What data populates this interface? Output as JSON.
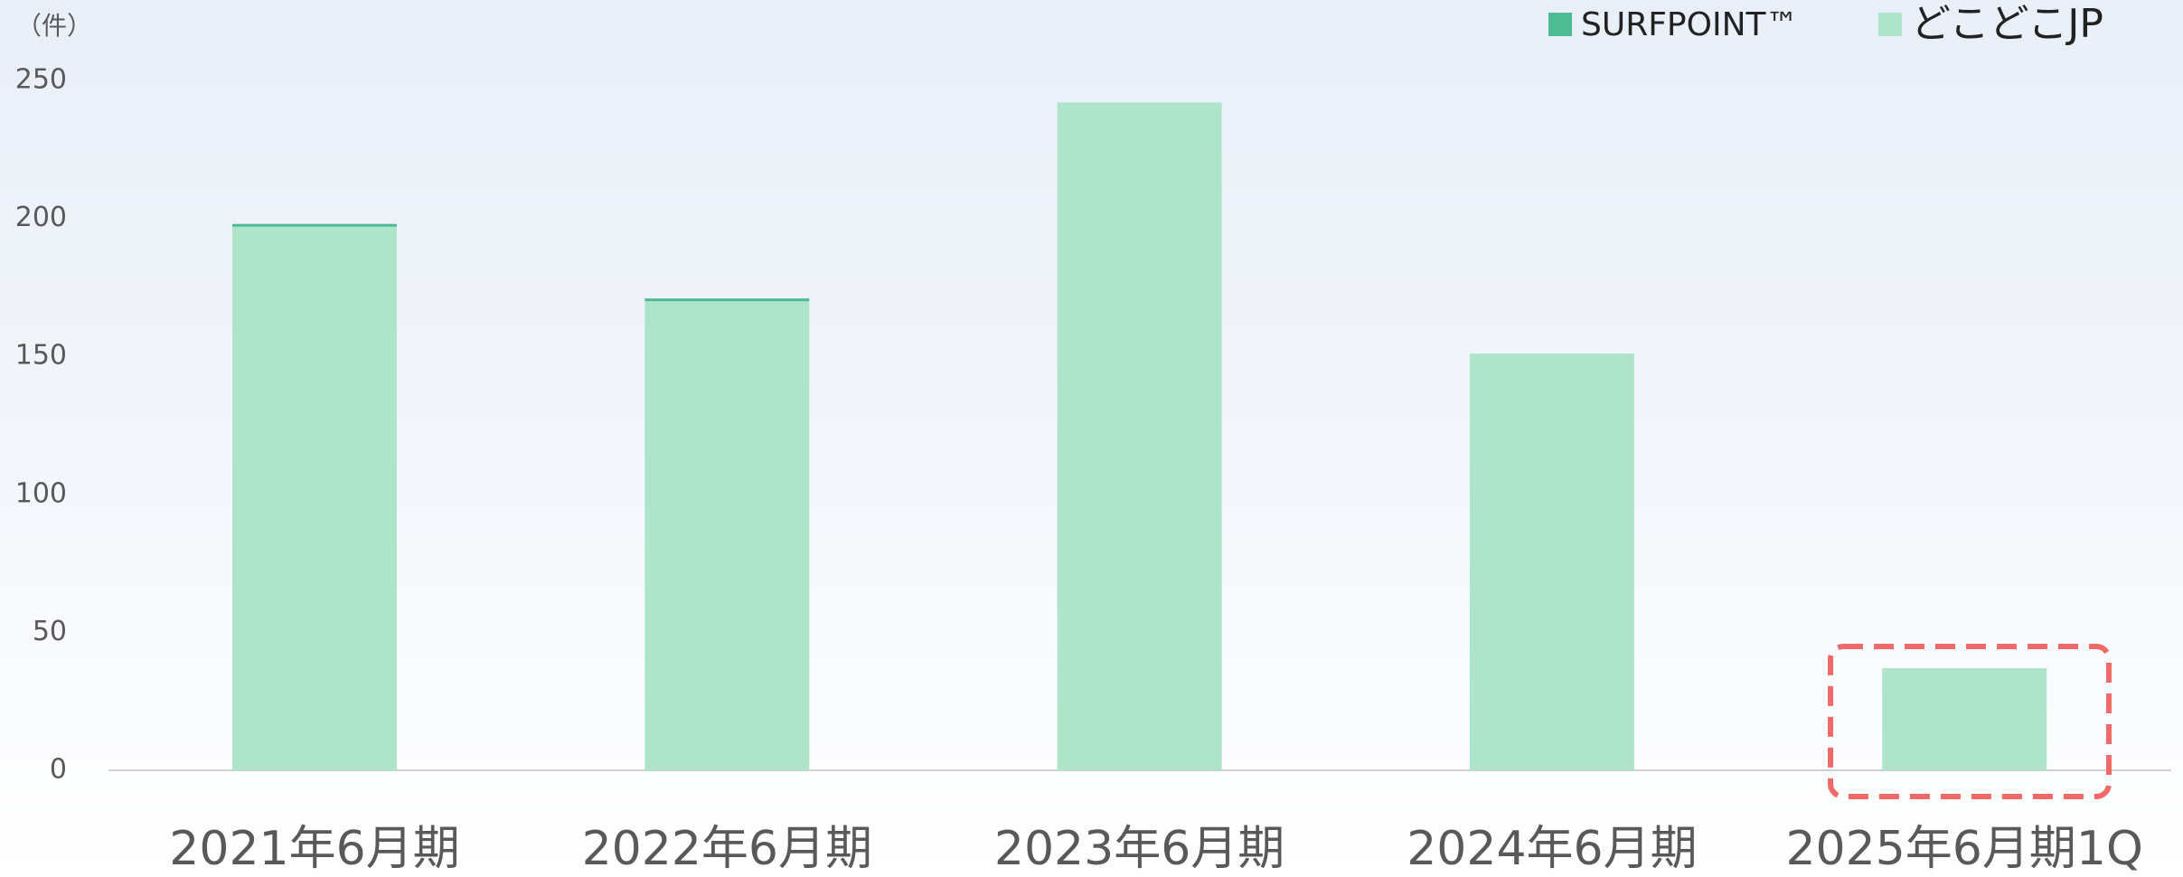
{
  "chart_data": {
    "type": "stacked_bar",
    "y_unit_label": "（件）",
    "categories": [
      "2021年6月期",
      "2022年6月期",
      "2023年6月期",
      "2024年6月期",
      "2025年6月期1Q"
    ],
    "series": [
      {
        "name": "どこどこJP",
        "color": "#aee4ca",
        "values": [
          197,
          170,
          242,
          151,
          37
        ]
      },
      {
        "name": "SURFPOINT™",
        "color": "#4dbb94",
        "values": [
          1,
          1,
          0,
          0,
          0
        ]
      }
    ],
    "ylim": [
      0,
      250
    ],
    "yticks": [
      0,
      50,
      100,
      150,
      200,
      250
    ],
    "grid": false
  }
}
